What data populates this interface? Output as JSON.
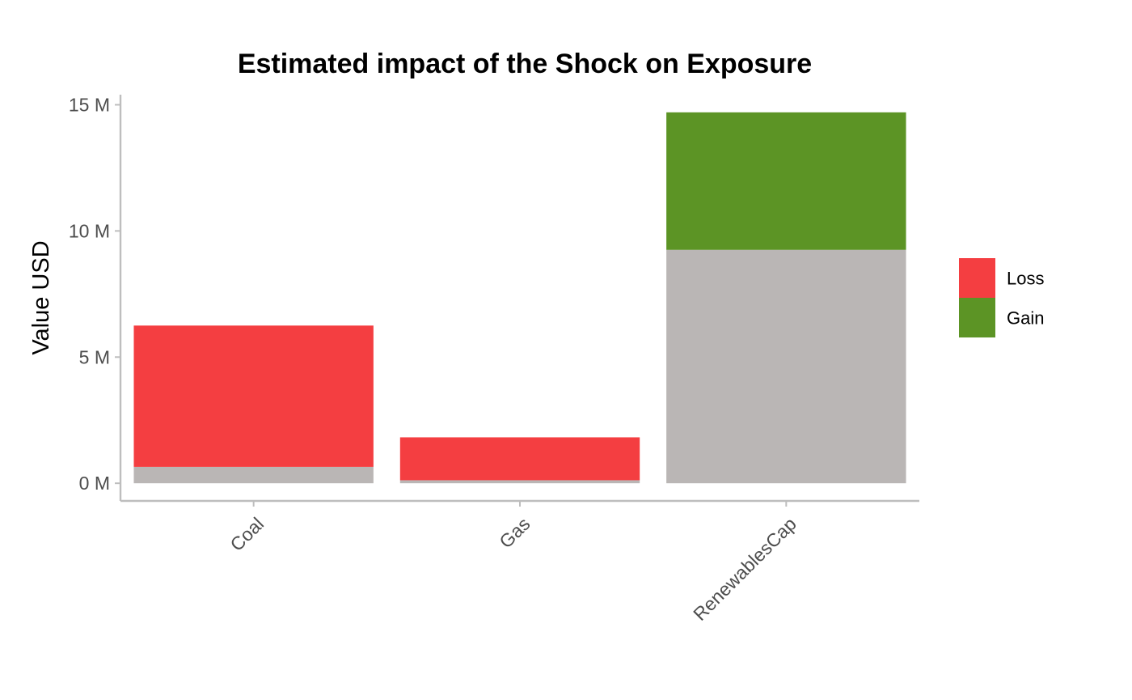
{
  "chart_data": {
    "type": "bar",
    "stacked": true,
    "title": "Estimated impact of the Shock on Exposure",
    "xlabel": "",
    "ylabel": "Value USD",
    "categories": [
      "Coal",
      "Gas",
      "RenewablesCap"
    ],
    "ylim": [
      -0.7,
      15.4
    ],
    "yticks": [
      0,
      5,
      10,
      15
    ],
    "ytick_labels": [
      "0 M",
      "5 M",
      "10 M",
      "15 M"
    ],
    "series": [
      {
        "name": "",
        "role": "base",
        "color": "#bab6b5",
        "values": [
          0.65,
          0.12,
          9.25
        ]
      },
      {
        "name": "Loss",
        "role": "loss",
        "color": "#f43e41",
        "values": [
          5.6,
          1.7,
          0
        ]
      },
      {
        "name": "Gain",
        "role": "gain",
        "color": "#5c9425",
        "values": [
          0,
          0,
          5.45
        ]
      }
    ],
    "legend": {
      "position": "right",
      "entries": [
        {
          "label": "Loss",
          "color": "#f43e41"
        },
        {
          "label": "Gain",
          "color": "#5c9425"
        }
      ]
    },
    "grid": false
  }
}
